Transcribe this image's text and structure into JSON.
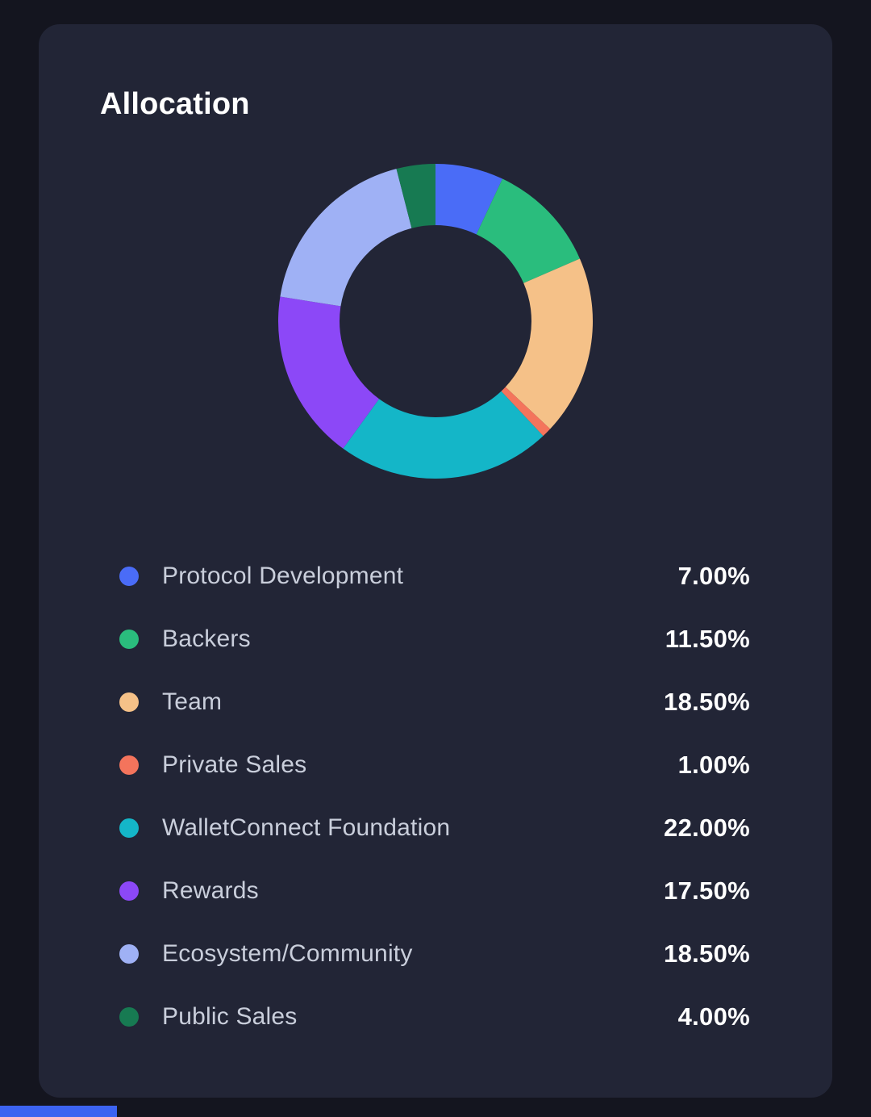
{
  "card": {
    "title": "Allocation"
  },
  "chart_data": {
    "type": "pie",
    "subtype": "donut",
    "title": "Allocation",
    "categories": [
      "Protocol Development",
      "Backers",
      "Team",
      "Private Sales",
      "WalletConnect Foundation",
      "Rewards",
      "Ecosystem/Community",
      "Public Sales"
    ],
    "values": [
      7,
      11.5,
      18.5,
      1,
      22,
      17.5,
      18.5,
      4
    ],
    "value_labels": [
      "7.00%",
      "11.50%",
      "18.50%",
      "1.00%",
      "22.00%",
      "17.50%",
      "18.50%",
      "4.00%"
    ],
    "colors": [
      "#4a6cf7",
      "#2abd7d",
      "#f5c188",
      "#f4745c",
      "#14b6c8",
      "#8c48f7",
      "#9fb1f5",
      "#177a52"
    ],
    "total": 100,
    "start_angle_deg": 0,
    "direction": "clockwise",
    "inner_radius_ratio": 0.61,
    "legend_position": "bottom-list"
  },
  "ui_colors": {
    "page_background": "#14151f",
    "card_background": "#222536",
    "legend_label": "#c9cedb",
    "legend_value": "#ffffff",
    "bottom_accent": "#3c63f1"
  }
}
